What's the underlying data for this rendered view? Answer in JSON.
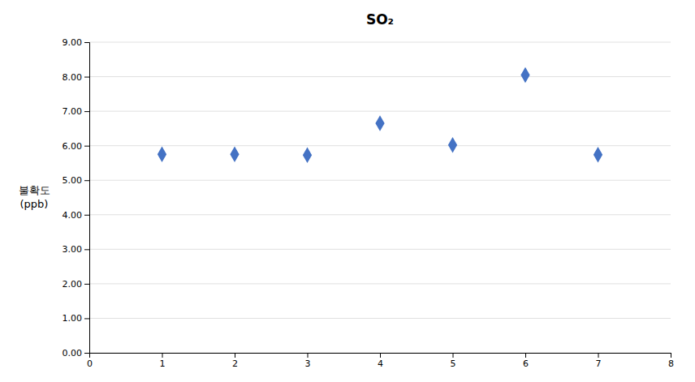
{
  "chart_data": {
    "type": "scatter",
    "title": "SO₂",
    "ylabel": "불확도\n(ppb)",
    "x": [
      1,
      2,
      3,
      4,
      5,
      6,
      7
    ],
    "values": [
      5.75,
      5.75,
      5.73,
      6.65,
      6.02,
      8.05,
      5.74
    ],
    "color": "#4472C4",
    "marker": "diamond",
    "xlim": [
      0,
      8
    ],
    "ylim": [
      0,
      9.0
    ],
    "xticks": [
      0,
      1,
      2,
      3,
      4,
      5,
      6,
      7,
      8
    ],
    "yticks": [
      {
        "value": 0,
        "label": "0.00"
      },
      {
        "value": 1,
        "label": "1.00"
      },
      {
        "value": 2,
        "label": "2.00"
      },
      {
        "value": 3,
        "label": "3.00"
      },
      {
        "value": 4,
        "label": "4.00"
      },
      {
        "value": 5,
        "label": "5.00"
      },
      {
        "value": 6,
        "label": "6.00"
      },
      {
        "value": 7,
        "label": "7.00"
      },
      {
        "value": 8,
        "label": "8.00"
      },
      {
        "value": 9,
        "label": "9.00"
      }
    ],
    "grid": "y"
  }
}
